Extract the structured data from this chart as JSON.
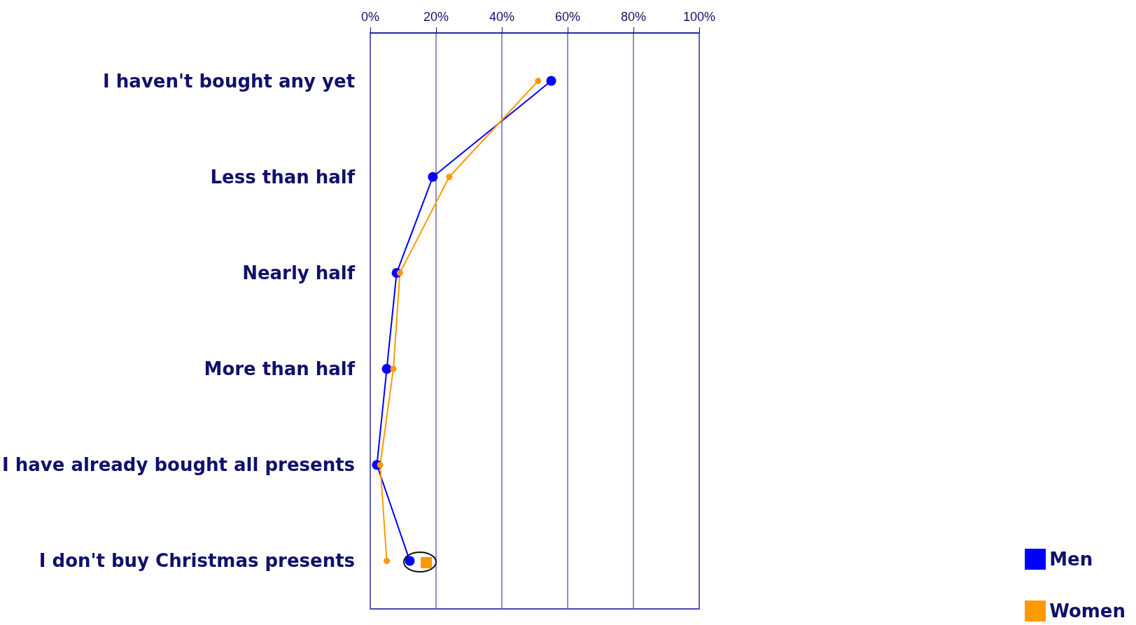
{
  "chart_data": {
    "type": "line",
    "orientation": "horizontal",
    "categories": [
      "I haven't bought any yet",
      "Less than half",
      "Nearly half",
      "More than half",
      "I have already bought all presents",
      "I don't buy Christmas presents"
    ],
    "series": [
      {
        "name": "Men",
        "color": "#0000ff",
        "values": [
          55,
          19,
          8,
          5,
          2,
          12
        ]
      },
      {
        "name": "Women",
        "color": "#ff9900",
        "values": [
          51,
          24,
          9,
          7,
          3,
          5
        ]
      }
    ],
    "xlim": [
      0,
      100
    ],
    "xticks": [
      {
        "value": 0,
        "label": "0%"
      },
      {
        "value": 20,
        "label": "20%"
      },
      {
        "value": 40,
        "label": "40%"
      },
      {
        "value": 60,
        "label": "60%"
      },
      {
        "value": 80,
        "label": "80%"
      },
      {
        "value": 100,
        "label": "100%"
      }
    ],
    "grid": "x",
    "legend": "bottom right",
    "marker": "circle",
    "line_style": "solid"
  }
}
